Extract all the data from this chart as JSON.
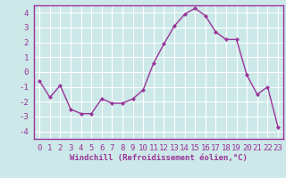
{
  "x": [
    0,
    1,
    2,
    3,
    4,
    5,
    6,
    7,
    8,
    9,
    10,
    11,
    12,
    13,
    14,
    15,
    16,
    17,
    18,
    19,
    20,
    21,
    22,
    23
  ],
  "y": [
    -0.6,
    -1.7,
    -0.9,
    -2.5,
    -2.8,
    -2.8,
    -1.8,
    -2.1,
    -2.1,
    -1.8,
    -1.2,
    0.6,
    1.9,
    3.1,
    3.9,
    4.3,
    3.8,
    2.7,
    2.2,
    2.2,
    -0.2,
    -1.5,
    -1.0,
    -3.7
  ],
  "line_color": "#993399",
  "marker": "D",
  "marker_size": 2.0,
  "bg_color": "#cce8e8",
  "grid_color": "#ffffff",
  "xlabel": "Windchill (Refroidissement éolien,°C)",
  "xlim": [
    -0.5,
    23.5
  ],
  "ylim": [
    -4.5,
    4.5
  ],
  "yticks": [
    -4,
    -3,
    -2,
    -1,
    0,
    1,
    2,
    3,
    4
  ],
  "xticks": [
    0,
    1,
    2,
    3,
    4,
    5,
    6,
    7,
    8,
    9,
    10,
    11,
    12,
    13,
    14,
    15,
    16,
    17,
    18,
    19,
    20,
    21,
    22,
    23
  ],
  "xlabel_fontsize": 6.5,
  "tick_fontsize": 6.5,
  "line_width": 1.0
}
